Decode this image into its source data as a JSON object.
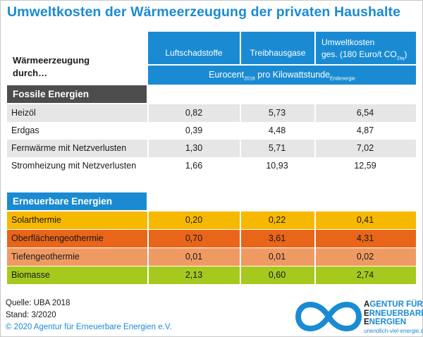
{
  "title": "Umweltkosten der Wärmeerzeugung der privaten Haushalte",
  "header": {
    "row_label_line1": "Wärmeerzeugung",
    "row_label_line2": "durch…",
    "col1": "Luftschadstoffe",
    "col2": "Treibhausgase",
    "col3_line1": "Umweltkosten",
    "col3_line2_pre": "ges. (180 Euro/t CO",
    "col3_sub1": "2",
    "col3_sub2": "äq",
    "col3_line2_post": ")",
    "unit_pre": "Eurocent",
    "unit_sub1": "2016",
    "unit_mid": " pro Kilowattstunde",
    "unit_sub2": "Endenergie"
  },
  "sections": {
    "fossil": "Fossile Energien",
    "renewable": "Erneuerbare Energien"
  },
  "fossil_rows": [
    {
      "label": "Heizöl",
      "v1": "0,82",
      "v2": "5,73",
      "v3": "6,54"
    },
    {
      "label": "Erdgas",
      "v1": "0,39",
      "v2": "4,48",
      "v3": "4,87"
    },
    {
      "label": "Fernwärme mit Netzverlusten",
      "v1": "1,30",
      "v2": "5,71",
      "v3": "7,02"
    },
    {
      "label": "Stromheizung mit Netzverlusten",
      "v1": "1,66",
      "v2": "10,93",
      "v3": "12,59"
    }
  ],
  "renewable_rows": [
    {
      "label": "Solarthermie",
      "v1": "0,20",
      "v2": "0,22",
      "v3": "0,41"
    },
    {
      "label": "Oberflächengeothermie",
      "v1": "0,70",
      "v2": "3,61",
      "v3": "4,31"
    },
    {
      "label": "Tiefengeothermie",
      "v1": "0,01",
      "v2": "0,01",
      "v3": "0,02"
    },
    {
      "label": "Biomasse",
      "v1": "2,13",
      "v2": "0,60",
      "v3": "2,74"
    }
  ],
  "colors": {
    "accent": "#1a8bd2",
    "fossil_header": "#4d4d4d",
    "row_gray": "#e6e6e6",
    "solar": "#f7b800",
    "oberflaeche": "#e8651a",
    "tiefe": "#f09a63",
    "biomasse": "#a6c91e"
  },
  "footer": {
    "source": "Quelle: UBA 2018",
    "date": "Stand: 3/2020",
    "copyright": "© 2020 Agentur für Erneuerbare Energien e.V."
  },
  "logo": {
    "line1_a": "A",
    "line1_b": "GENTUR FÜR",
    "line2_a": "E",
    "line2_b": "RNEUERBARE",
    "line3_a": "E",
    "line3_b": "NERGIEN",
    "url": "unendlich-viel-energie.de",
    "icon": "infinity-icon"
  }
}
